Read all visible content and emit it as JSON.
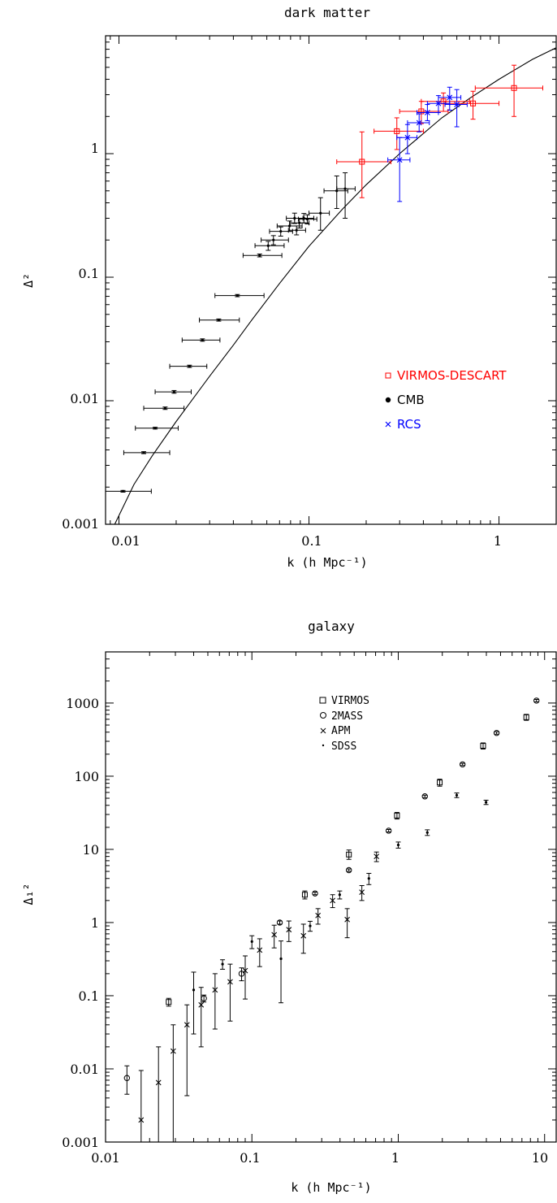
{
  "chart_data": [
    {
      "type": "scatter",
      "title": "dark matter",
      "xlabel": "k (h Mpc⁻¹)",
      "ylabel": "Δ²",
      "xscale": "log",
      "yscale": "log",
      "xlim": [
        0.0085,
        2.0
      ],
      "ylim": [
        0.001,
        9.0
      ],
      "x_tick_labels": [
        "0.01",
        "0.1",
        "1"
      ],
      "y_tick_labels": [
        "0.001",
        "0.01",
        "0.1",
        "1"
      ],
      "legend_position": "right, middle",
      "colors": {
        "VIRMOS-DESCART": "#ff0000",
        "CMB": "#000000",
        "RCS": "#0000ff"
      },
      "series": [
        {
          "name": "VIRMOS-DESCART",
          "marker": "square",
          "color": "#ff0000",
          "points": [
            {
              "x": 0.19,
              "y": 0.86,
              "xlo": 0.14,
              "xhi": 0.27,
              "ylo": 0.44,
              "yhi": 1.5
            },
            {
              "x": 0.29,
              "y": 1.52,
              "xlo": 0.22,
              "xhi": 0.4,
              "ylo": 1.08,
              "yhi": 1.95
            },
            {
              "x": 0.39,
              "y": 2.2,
              "xlo": 0.3,
              "xhi": 0.54,
              "ylo": 1.75,
              "yhi": 2.65
            },
            {
              "x": 0.51,
              "y": 2.65,
              "xlo": 0.39,
              "xhi": 0.7,
              "ylo": 2.2,
              "yhi": 3.1
            },
            {
              "x": 0.73,
              "y": 2.55,
              "xlo": 0.52,
              "xhi": 1.0,
              "ylo": 1.9,
              "yhi": 3.2
            },
            {
              "x": 1.2,
              "y": 3.4,
              "xlo": 0.75,
              "xhi": 1.7,
              "ylo": 2.0,
              "yhi": 5.2
            }
          ]
        },
        {
          "name": "CMB",
          "marker": "dot",
          "color": "#000000",
          "points": [
            {
              "x": 0.0105,
              "y": 0.00185,
              "xlo": 0.0085,
              "xhi": 0.0148,
              "ylo": 0.00182,
              "yhi": 0.00188
            },
            {
              "x": 0.0135,
              "y": 0.0038,
              "xlo": 0.0106,
              "xhi": 0.0185,
              "ylo": 0.00373,
              "yhi": 0.00387
            },
            {
              "x": 0.0155,
              "y": 0.006,
              "xlo": 0.0122,
              "xhi": 0.0205,
              "ylo": 0.0059,
              "yhi": 0.0061
            },
            {
              "x": 0.0175,
              "y": 0.0087,
              "xlo": 0.0135,
              "xhi": 0.022,
              "ylo": 0.0085,
              "yhi": 0.0089
            },
            {
              "x": 0.0195,
              "y": 0.0118,
              "xlo": 0.0155,
              "xhi": 0.024,
              "ylo": 0.0115,
              "yhi": 0.0121
            },
            {
              "x": 0.0235,
              "y": 0.019,
              "xlo": 0.0185,
              "xhi": 0.029,
              "ylo": 0.0186,
              "yhi": 0.0194
            },
            {
              "x": 0.0275,
              "y": 0.031,
              "xlo": 0.0215,
              "xhi": 0.034,
              "ylo": 0.0303,
              "yhi": 0.0317
            },
            {
              "x": 0.0335,
              "y": 0.045,
              "xlo": 0.0265,
              "xhi": 0.043,
              "ylo": 0.0441,
              "yhi": 0.0459
            },
            {
              "x": 0.042,
              "y": 0.071,
              "xlo": 0.032,
              "xhi": 0.058,
              "ylo": 0.0695,
              "yhi": 0.0725
            },
            {
              "x": 0.055,
              "y": 0.15,
              "xlo": 0.045,
              "xhi": 0.072,
              "ylo": 0.146,
              "yhi": 0.154
            },
            {
              "x": 0.061,
              "y": 0.18,
              "xlo": 0.052,
              "xhi": 0.074,
              "ylo": 0.165,
              "yhi": 0.195
            },
            {
              "x": 0.065,
              "y": 0.2,
              "xlo": 0.056,
              "xhi": 0.078,
              "ylo": 0.183,
              "yhi": 0.217
            },
            {
              "x": 0.071,
              "y": 0.235,
              "xlo": 0.062,
              "xhi": 0.082,
              "ylo": 0.215,
              "yhi": 0.255
            },
            {
              "x": 0.079,
              "y": 0.26,
              "xlo": 0.068,
              "xhi": 0.092,
              "ylo": 0.235,
              "yhi": 0.285
            },
            {
              "x": 0.084,
              "y": 0.3,
              "xlo": 0.076,
              "xhi": 0.093,
              "ylo": 0.272,
              "yhi": 0.33
            },
            {
              "x": 0.086,
              "y": 0.24,
              "xlo": 0.078,
              "xhi": 0.096,
              "ylo": 0.22,
              "yhi": 0.26
            },
            {
              "x": 0.089,
              "y": 0.275,
              "xlo": 0.08,
              "xhi": 0.1,
              "ylo": 0.25,
              "yhi": 0.3
            },
            {
              "x": 0.094,
              "y": 0.3,
              "xlo": 0.084,
              "xhi": 0.106,
              "ylo": 0.275,
              "yhi": 0.328
            },
            {
              "x": 0.098,
              "y": 0.295,
              "xlo": 0.088,
              "xhi": 0.11,
              "ylo": 0.27,
              "yhi": 0.32
            },
            {
              "x": 0.115,
              "y": 0.33,
              "xlo": 0.1,
              "xhi": 0.128,
              "ylo": 0.24,
              "yhi": 0.44
            },
            {
              "x": 0.14,
              "y": 0.5,
              "xlo": 0.12,
              "xhi": 0.16,
              "ylo": 0.36,
              "yhi": 0.66
            },
            {
              "x": 0.155,
              "y": 0.52,
              "xlo": 0.14,
              "xhi": 0.175,
              "ylo": 0.3,
              "yhi": 0.7
            }
          ]
        },
        {
          "name": "RCS",
          "marker": "cross",
          "color": "#0000ff",
          "points": [
            {
              "x": 0.3,
              "y": 0.89,
              "xlo": 0.26,
              "xhi": 0.34,
              "ylo": 0.41,
              "yhi": 1.35
            },
            {
              "x": 0.33,
              "y": 1.35,
              "xlo": 0.29,
              "xhi": 0.37,
              "ylo": 1.0,
              "yhi": 1.72
            },
            {
              "x": 0.38,
              "y": 1.78,
              "xlo": 0.33,
              "xhi": 0.43,
              "ylo": 1.5,
              "yhi": 2.1
            },
            {
              "x": 0.42,
              "y": 2.15,
              "xlo": 0.37,
              "xhi": 0.48,
              "ylo": 1.85,
              "yhi": 2.5
            },
            {
              "x": 0.48,
              "y": 2.55,
              "xlo": 0.42,
              "xhi": 0.55,
              "ylo": 2.15,
              "yhi": 2.95
            },
            {
              "x": 0.55,
              "y": 2.85,
              "xlo": 0.48,
              "xhi": 0.63,
              "ylo": 2.25,
              "yhi": 3.45
            },
            {
              "x": 0.6,
              "y": 2.5,
              "xlo": 0.52,
              "xhi": 0.68,
              "ylo": 1.65,
              "yhi": 3.3
            }
          ]
        }
      ],
      "model_curve": [
        [
          0.0095,
          0.001
        ],
        [
          0.012,
          0.0021
        ],
        [
          0.015,
          0.0036
        ],
        [
          0.02,
          0.0068
        ],
        [
          0.03,
          0.0158
        ],
        [
          0.04,
          0.0282
        ],
        [
          0.05,
          0.045
        ],
        [
          0.07,
          0.089
        ],
        [
          0.1,
          0.178
        ],
        [
          0.15,
          0.355
        ],
        [
          0.2,
          0.56
        ],
        [
          0.3,
          1.0
        ],
        [
          0.5,
          1.95
        ],
        [
          0.7,
          2.8
        ],
        [
          1.0,
          4.0
        ],
        [
          1.5,
          5.8
        ],
        [
          2.0,
          7.2
        ]
      ]
    },
    {
      "type": "scatter",
      "title": "galaxy",
      "xlabel": "k (h Mpc⁻¹)",
      "ylabel": "Δ₁²",
      "xscale": "log",
      "yscale": "log",
      "xlim": [
        0.01,
        12.0
      ],
      "ylim": [
        0.001,
        5000
      ],
      "x_tick_labels": [
        "0.01",
        "0.1",
        "1",
        "10"
      ],
      "y_tick_labels": [
        "0.001",
        "0.01",
        "0.1",
        "1",
        "10",
        "100",
        "1000"
      ],
      "legend_position": "top-center",
      "series": [
        {
          "name": "VIRMOS",
          "marker": "square",
          "points": [
            {
              "x": 0.027,
              "y": 0.082,
              "ylo": 0.072,
              "yhi": 0.092
            },
            {
              "x": 0.23,
              "y": 2.4,
              "ylo": 2.1,
              "yhi": 2.7
            },
            {
              "x": 0.46,
              "y": 8.5,
              "ylo": 7.3,
              "yhi": 9.8
            },
            {
              "x": 0.98,
              "y": 29,
              "ylo": 26,
              "yhi": 32
            },
            {
              "x": 1.92,
              "y": 82,
              "ylo": 73,
              "yhi": 91
            },
            {
              "x": 3.8,
              "y": 260,
              "ylo": 235,
              "yhi": 285
            },
            {
              "x": 7.5,
              "y": 640,
              "ylo": 580,
              "yhi": 700
            }
          ]
        },
        {
          "name": "2MASS",
          "marker": "circle",
          "points": [
            {
              "x": 0.014,
              "y": 0.0075,
              "ylo": 0.0045,
              "yhi": 0.011
            },
            {
              "x": 0.047,
              "y": 0.092,
              "ylo": 0.082,
              "yhi": 0.102
            },
            {
              "x": 0.085,
              "y": 0.2,
              "ylo": 0.16,
              "yhi": 0.24
            },
            {
              "x": 0.155,
              "y": 1.0,
              "ylo": 0.95,
              "yhi": 1.05
            },
            {
              "x": 0.27,
              "y": 2.5,
              "ylo": 2.4,
              "yhi": 2.6
            },
            {
              "x": 0.46,
              "y": 5.2,
              "ylo": 5.0,
              "yhi": 5.4
            },
            {
              "x": 0.86,
              "y": 18,
              "ylo": 17.3,
              "yhi": 18.7
            },
            {
              "x": 1.52,
              "y": 53,
              "ylo": 51,
              "yhi": 55
            },
            {
              "x": 2.75,
              "y": 145,
              "ylo": 140,
              "yhi": 150
            },
            {
              "x": 4.7,
              "y": 390,
              "ylo": 375,
              "yhi": 405
            },
            {
              "x": 8.8,
              "y": 1080,
              "ylo": 1040,
              "yhi": 1120
            }
          ]
        },
        {
          "name": "APM",
          "marker": "cross",
          "points": [
            {
              "x": 0.0175,
              "y": 0.002,
              "ylo": 0.001,
              "yhi": 0.0095
            },
            {
              "x": 0.023,
              "y": 0.0065,
              "ylo": 0.001,
              "yhi": 0.02
            },
            {
              "x": 0.029,
              "y": 0.0175,
              "ylo": 0.001,
              "yhi": 0.04
            },
            {
              "x": 0.036,
              "y": 0.04,
              "ylo": 0.0043,
              "yhi": 0.075
            },
            {
              "x": 0.045,
              "y": 0.075,
              "ylo": 0.02,
              "yhi": 0.13
            },
            {
              "x": 0.056,
              "y": 0.12,
              "ylo": 0.035,
              "yhi": 0.2
            },
            {
              "x": 0.071,
              "y": 0.155,
              "ylo": 0.045,
              "yhi": 0.27
            },
            {
              "x": 0.09,
              "y": 0.22,
              "ylo": 0.09,
              "yhi": 0.35
            },
            {
              "x": 0.113,
              "y": 0.42,
              "ylo": 0.25,
              "yhi": 0.6
            },
            {
              "x": 0.142,
              "y": 0.68,
              "ylo": 0.45,
              "yhi": 0.92
            },
            {
              "x": 0.179,
              "y": 0.8,
              "ylo": 0.55,
              "yhi": 1.05
            },
            {
              "x": 0.225,
              "y": 0.66,
              "ylo": 0.38,
              "yhi": 0.95
            },
            {
              "x": 0.283,
              "y": 1.25,
              "ylo": 0.95,
              "yhi": 1.55
            },
            {
              "x": 0.356,
              "y": 2.0,
              "ylo": 1.6,
              "yhi": 2.4
            },
            {
              "x": 0.448,
              "y": 1.1,
              "ylo": 0.62,
              "yhi": 1.55
            },
            {
              "x": 0.564,
              "y": 2.6,
              "ylo": 2.0,
              "yhi": 3.2
            },
            {
              "x": 0.71,
              "y": 8.0,
              "ylo": 6.8,
              "yhi": 9.2
            }
          ]
        },
        {
          "name": "SDSS",
          "marker": "dot",
          "points": [
            {
              "x": 0.04,
              "y": 0.12,
              "ylo": 0.03,
              "yhi": 0.21
            },
            {
              "x": 0.063,
              "y": 0.27,
              "ylo": 0.23,
              "yhi": 0.31
            },
            {
              "x": 0.1,
              "y": 0.55,
              "ylo": 0.44,
              "yhi": 0.66
            },
            {
              "x": 0.158,
              "y": 0.32,
              "ylo": 0.08,
              "yhi": 0.56
            },
            {
              "x": 0.25,
              "y": 0.9,
              "ylo": 0.76,
              "yhi": 1.04
            },
            {
              "x": 0.398,
              "y": 2.4,
              "ylo": 2.1,
              "yhi": 2.7
            },
            {
              "x": 0.63,
              "y": 4.0,
              "ylo": 3.3,
              "yhi": 4.7
            },
            {
              "x": 1.0,
              "y": 11.5,
              "ylo": 10.4,
              "yhi": 12.6
            },
            {
              "x": 1.58,
              "y": 17,
              "ylo": 15.5,
              "yhi": 18.5
            },
            {
              "x": 2.51,
              "y": 55,
              "ylo": 51,
              "yhi": 59
            },
            {
              "x": 3.98,
              "y": 44,
              "ylo": 41,
              "yhi": 47
            }
          ]
        }
      ]
    }
  ]
}
